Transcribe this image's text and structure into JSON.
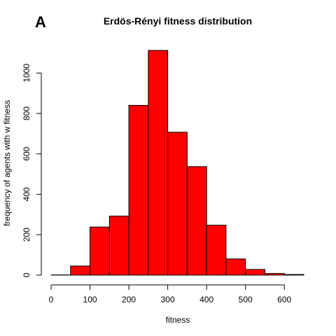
{
  "panel_label": "A",
  "chart_data": {
    "type": "bar",
    "title": "Erdös-Rényi fitness distribution",
    "xlabel": "fitness",
    "ylabel": "frequency of agents with w fitness",
    "bin_edges": [
      0,
      50,
      100,
      150,
      200,
      250,
      300,
      350,
      400,
      450,
      500,
      550,
      600,
      650
    ],
    "values": [
      1,
      45,
      238,
      292,
      840,
      1112,
      707,
      537,
      247,
      80,
      28,
      8,
      3
    ],
    "xlim": [
      0,
      650
    ],
    "ylim": [
      0,
      1112
    ],
    "xticks": [
      0,
      100,
      200,
      300,
      400,
      500,
      600
    ],
    "yticks": [
      0,
      200,
      400,
      600,
      800,
      1000
    ],
    "bar_color": "#ff0000",
    "edge_color": "#000000",
    "grid": false,
    "legend": "none"
  }
}
